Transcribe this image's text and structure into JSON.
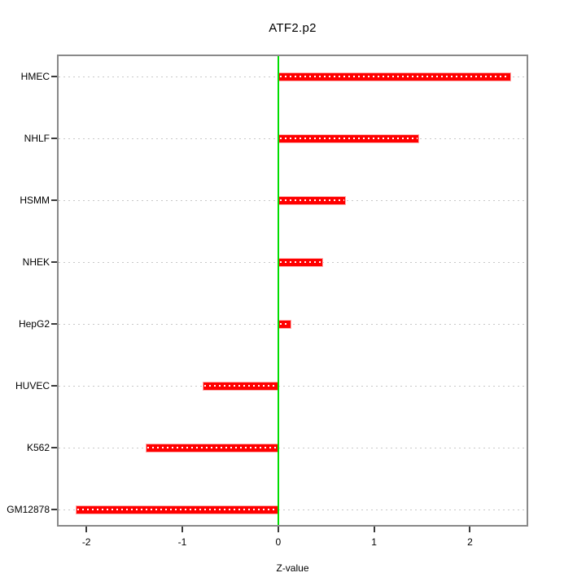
{
  "chart_data": {
    "type": "bar",
    "orientation": "horizontal",
    "title": "ATF2.p2",
    "xlabel": "Z-value",
    "categories": [
      "HMEC",
      "NHLF",
      "HSMM",
      "NHEK",
      "HepG2",
      "HUVEC",
      "K562",
      "GM12878"
    ],
    "values": [
      2.43,
      1.47,
      0.71,
      0.47,
      0.14,
      -0.79,
      -1.38,
      -2.11
    ],
    "xlim": [
      -2.29,
      2.59
    ],
    "xticks": [
      -2,
      -1,
      0,
      1,
      2
    ],
    "xtick_labels": [
      "-2",
      "-1",
      "0",
      "1",
      "2"
    ],
    "grid": "dotted horizontal line per category",
    "zero_line_at": 0,
    "legend": "none",
    "colors": {
      "bar_fill": "#ff0000",
      "bar_border": "#ffaaaa",
      "bar_center_dots": "#ffffff",
      "zero_line": "#00dd00",
      "grid_line": "#c8c8c8",
      "frame": "#898989",
      "tick": "#3a3a3a",
      "text": "#000000",
      "background": "#ffffff"
    }
  }
}
